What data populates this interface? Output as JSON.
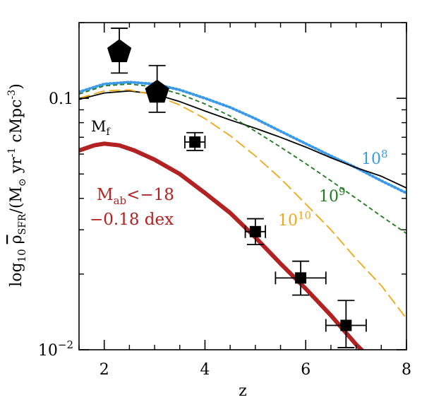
{
  "chart_data": {
    "type": "line",
    "xlabel": "z",
    "ylabel_parts": {
      "log": "log",
      "log_sub": "10",
      "rho": "ρ",
      "rho_sub": "SFR",
      "units_open": "/(M",
      "sun": "⊙",
      "units_mid": " yr",
      "exp1": "-1",
      "units_cmpc": " cMpc",
      "exp3": "-3",
      "units_close": ")"
    },
    "xlim": [
      1.5,
      8
    ],
    "ylim": [
      0.01,
      0.2
    ],
    "yscale": "log",
    "grid": false,
    "x_ticks": [
      2,
      4,
      6,
      8
    ],
    "x_tick_labels": [
      "2",
      "4",
      "6",
      "8"
    ],
    "y_major_ticks": [
      {
        "value": 0.1,
        "label": "0.1"
      },
      {
        "value": 0.01,
        "label": "10",
        "label_exp": "−2"
      }
    ],
    "series": [
      {
        "label_base": "10",
        "label_exp": "8",
        "color": "#3a9ae8",
        "style": "dotted",
        "x": [
          1.5,
          2.0,
          2.5,
          3.0,
          3.5,
          4.0,
          4.5,
          5.0,
          5.5,
          6.0,
          6.5,
          7.0,
          7.5,
          8.0
        ],
        "y": [
          0.106,
          0.114,
          0.116,
          0.114,
          0.108,
          0.1,
          0.092,
          0.083,
          0.074,
          0.066,
          0.059,
          0.053,
          0.047,
          0.042
        ]
      },
      {
        "label_base": "",
        "label_exp": "",
        "color": "#000000",
        "style": "solid",
        "x": [
          1.5,
          2.0,
          2.5,
          3.0,
          3.5,
          4.0,
          4.5,
          5.0,
          5.5,
          6.0,
          6.5,
          7.0,
          7.5,
          8.0
        ],
        "y": [
          0.099,
          0.105,
          0.107,
          0.104,
          0.097,
          0.089,
          0.082,
          0.076,
          0.07,
          0.064,
          0.058,
          0.053,
          0.049,
          0.044
        ]
      },
      {
        "label_base": "10",
        "label_exp": "9",
        "color": "#1e7a1e",
        "style": "short-dashed",
        "x": [
          1.5,
          2.0,
          2.5,
          3.0,
          3.5,
          4.0,
          4.5,
          5.0,
          5.5,
          6.0,
          6.5,
          7.0,
          7.5,
          8.0
        ],
        "y": [
          0.104,
          0.112,
          0.114,
          0.111,
          0.104,
          0.095,
          0.085,
          0.074,
          0.064,
          0.055,
          0.047,
          0.04,
          0.034,
          0.029
        ]
      },
      {
        "label_base": "10",
        "label_exp": "10",
        "color": "#f0a818",
        "style": "long-dashed",
        "x": [
          1.5,
          2.0,
          2.5,
          3.0,
          3.5,
          4.0,
          4.5,
          5.0,
          5.5,
          6.0,
          6.5,
          7.0,
          7.5,
          8.0
        ],
        "y": [
          0.1,
          0.107,
          0.108,
          0.103,
          0.094,
          0.083,
          0.071,
          0.059,
          0.048,
          0.038,
          0.03,
          0.023,
          0.018,
          0.0133
        ]
      },
      {
        "label_base": "",
        "label_exp": "",
        "color": "#b22222",
        "style": "thick-solid",
        "x": [
          1.5,
          1.8,
          2.0,
          2.3,
          2.6,
          3.0,
          3.5,
          4.0,
          4.5,
          5.0,
          5.5,
          6.0,
          6.5,
          7.0,
          7.15
        ],
        "y": [
          0.062,
          0.065,
          0.066,
          0.065,
          0.062,
          0.057,
          0.05,
          0.042,
          0.035,
          0.028,
          0.022,
          0.0175,
          0.0137,
          0.0105,
          0.0098
        ]
      }
    ],
    "points": [
      {
        "marker": "pentagon",
        "x": 2.3,
        "y": 0.155,
        "xerr": [
          0,
          0
        ],
        "yerr": [
          0.126,
          0.19
        ]
      },
      {
        "marker": "pentagon",
        "x": 3.05,
        "y": 0.107,
        "xerr": [
          0,
          0
        ],
        "yerr": [
          0.088,
          0.135
        ]
      },
      {
        "marker": "square",
        "x": 3.8,
        "y": 0.067,
        "xerr": [
          3.6,
          4.0
        ],
        "yerr": [
          0.062,
          0.073
        ]
      },
      {
        "marker": "square",
        "x": 5.0,
        "y": 0.0295,
        "xerr": [
          4.8,
          5.2
        ],
        "yerr": [
          0.0262,
          0.0332
        ]
      },
      {
        "marker": "square",
        "x": 5.9,
        "y": 0.0193,
        "xerr": [
          5.4,
          6.4
        ],
        "yerr": [
          0.0165,
          0.0225
        ]
      },
      {
        "marker": "square",
        "x": 6.8,
        "y": 0.0125,
        "xerr": [
          6.4,
          7.2
        ],
        "yerr": [
          0.0102,
          0.0157
        ]
      }
    ],
    "annotations": {
      "mf": {
        "text": "M",
        "sub": "f",
        "color": "#000000"
      },
      "l8": {
        "text": "10",
        "sup": "8",
        "color": "#3a9ae8"
      },
      "l9": {
        "text": "10",
        "sup": "9",
        "color": "#1e7a1e"
      },
      "l10": {
        "text": "10",
        "sup": "10",
        "color": "#f0a818"
      },
      "mab": {
        "line1_a": "M",
        "line1_sub": "ab",
        "line1_b": "<−18",
        "line2": "−0.18 dex",
        "color": "#b22222"
      }
    }
  }
}
